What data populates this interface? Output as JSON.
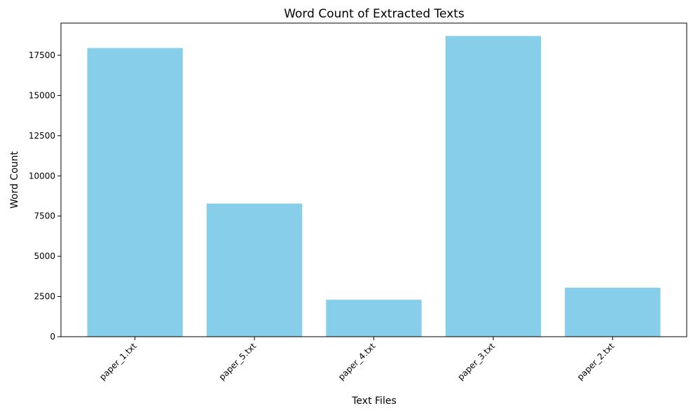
{
  "chart_data": {
    "type": "bar",
    "title": "Word Count of Extracted Texts",
    "xlabel": "Text Files",
    "ylabel": "Word Count",
    "categories": [
      "paper_1.txt",
      "paper_5.txt",
      "paper_4.txt",
      "paper_3.txt",
      "paper_2.txt"
    ],
    "values": [
      17950,
      8280,
      2300,
      18700,
      3050
    ],
    "ylim": [
      0,
      19500
    ],
    "yticks": [
      0,
      2500,
      5000,
      7500,
      10000,
      12500,
      15000,
      17500
    ],
    "bar_color": "#87CEEB",
    "grid": false,
    "legend": "none",
    "xtick_rotation": 45
  }
}
